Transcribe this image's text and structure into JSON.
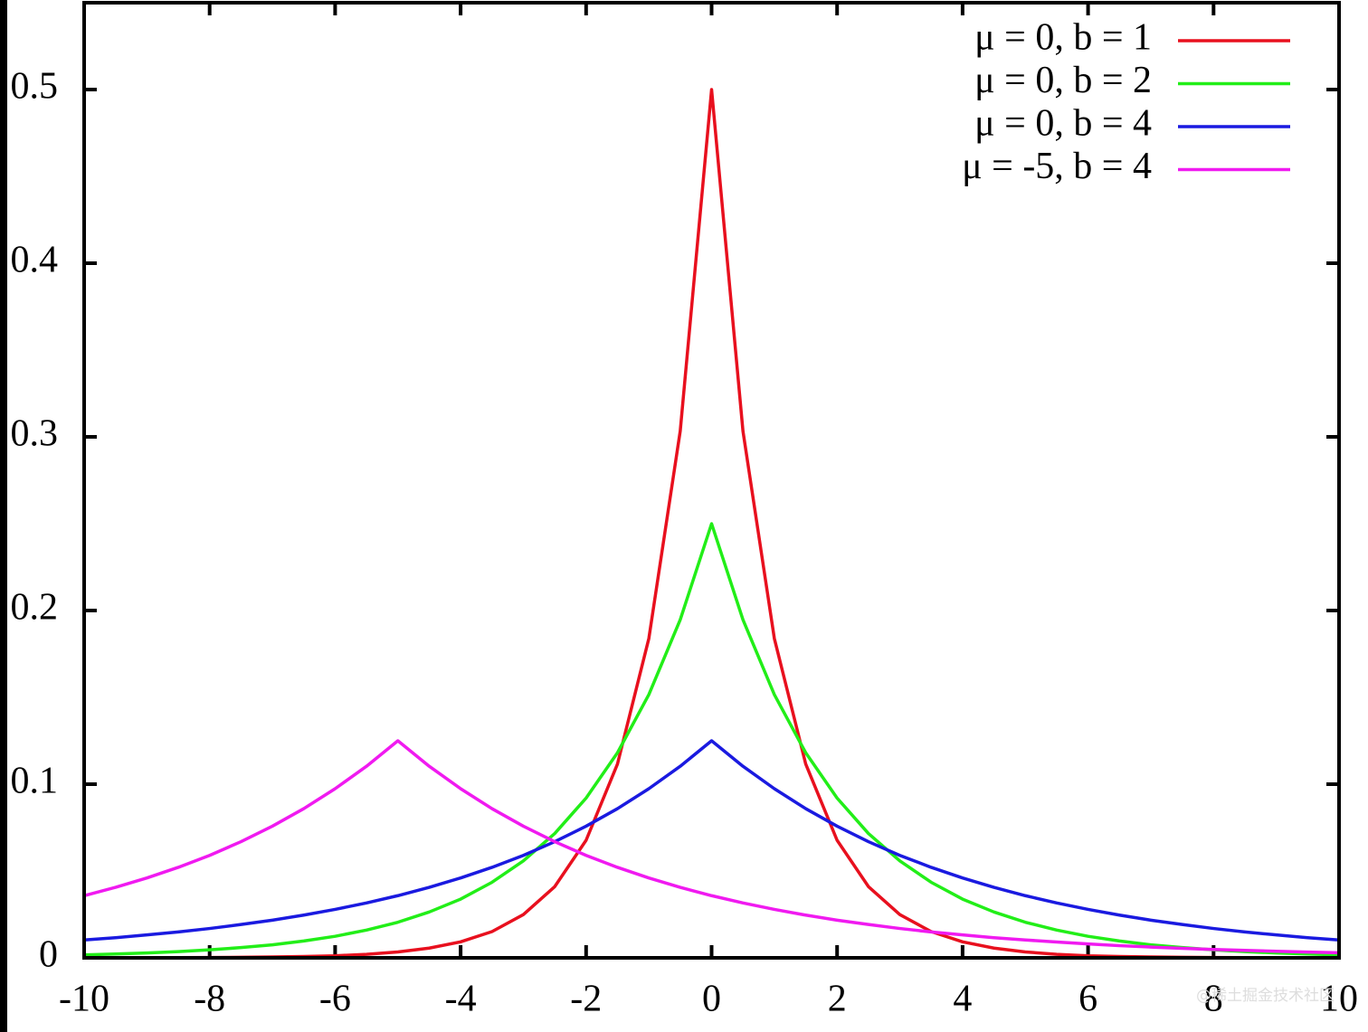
{
  "chart_data": {
    "type": "line",
    "x": [
      -10,
      -9.5,
      -9,
      -8.5,
      -8,
      -7.5,
      -7,
      -6.5,
      -6,
      -5.5,
      -5,
      -4.5,
      -4,
      -3.5,
      -3,
      -2.5,
      -2,
      -1.5,
      -1,
      -0.5,
      0,
      0.5,
      1,
      1.5,
      2,
      2.5,
      3,
      3.5,
      4,
      4.5,
      5,
      5.5,
      6,
      6.5,
      7,
      7.5,
      8,
      8.5,
      9,
      9.5,
      10
    ],
    "series": [
      {
        "name": "μ =  0, b = 1",
        "color": "#e8101e",
        "values": [
          0,
          0,
          0.0001,
          0.0001,
          0.0002,
          0.0003,
          0.0005,
          0.0008,
          0.0012,
          0.002,
          0.0034,
          0.0056,
          0.0092,
          0.0151,
          0.0249,
          0.041,
          0.0677,
          0.1116,
          0.1839,
          0.3033,
          0.5,
          0.3033,
          0.1839,
          0.1116,
          0.0677,
          0.041,
          0.0249,
          0.0151,
          0.0092,
          0.0056,
          0.0034,
          0.002,
          0.0012,
          0.0008,
          0.0005,
          0.0003,
          0.0002,
          0.0001,
          0.0001,
          0,
          0
        ]
      },
      {
        "name": "μ =  0, b = 2",
        "color": "#22ee18",
        "values": [
          0.0017,
          0.0022,
          0.0028,
          0.0036,
          0.0046,
          0.0059,
          0.0075,
          0.0097,
          0.0124,
          0.016,
          0.0205,
          0.0264,
          0.0338,
          0.0435,
          0.0558,
          0.0716,
          0.092,
          0.1181,
          0.1516,
          0.1947,
          0.25,
          0.1947,
          0.1516,
          0.1181,
          0.092,
          0.0716,
          0.0558,
          0.0435,
          0.0338,
          0.0264,
          0.0205,
          0.016,
          0.0124,
          0.0097,
          0.0075,
          0.0059,
          0.0046,
          0.0036,
          0.0028,
          0.0022,
          0.0017
        ]
      },
      {
        "name": "μ =  0, b = 4",
        "color": "#1a1ae0",
        "values": [
          0.0103,
          0.0116,
          0.0132,
          0.0149,
          0.0169,
          0.0192,
          0.0217,
          0.0246,
          0.0279,
          0.0316,
          0.0358,
          0.0406,
          0.046,
          0.0521,
          0.059,
          0.0669,
          0.0758,
          0.0859,
          0.0974,
          0.1103,
          0.125,
          0.1103,
          0.0974,
          0.0859,
          0.0758,
          0.0669,
          0.059,
          0.0521,
          0.046,
          0.0406,
          0.0358,
          0.0316,
          0.0279,
          0.0246,
          0.0217,
          0.0192,
          0.0169,
          0.0149,
          0.0132,
          0.0116,
          0.0103
        ]
      },
      {
        "name": "μ = -5, b = 4",
        "color": "#f01af0",
        "values": [
          0.0358,
          0.0406,
          0.046,
          0.0521,
          0.059,
          0.0669,
          0.0758,
          0.0859,
          0.0974,
          0.1103,
          0.125,
          0.1103,
          0.0974,
          0.0859,
          0.0758,
          0.0669,
          0.059,
          0.0521,
          0.046,
          0.0406,
          0.0358,
          0.0316,
          0.0279,
          0.0246,
          0.0217,
          0.0192,
          0.0169,
          0.0149,
          0.0132,
          0.0116,
          0.0103,
          0.0091,
          0.008,
          0.007,
          0.0062,
          0.0055,
          0.0048,
          0.0043,
          0.0038,
          0.0033,
          0.0029
        ]
      }
    ],
    "xlim": [
      -10,
      10
    ],
    "xticks": [
      -10,
      -8,
      -6,
      -4,
      -2,
      0,
      2,
      4,
      6,
      8,
      10
    ],
    "ylim": [
      0,
      0.55
    ],
    "yticks": [
      0,
      0.1,
      0.2,
      0.3,
      0.4,
      0.5
    ],
    "legend": "top-right",
    "watermark": "@稀土掘金技术社区"
  }
}
